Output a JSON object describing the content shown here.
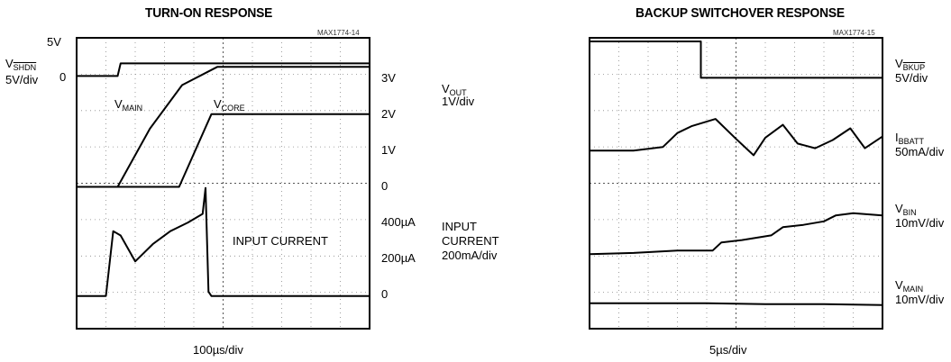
{
  "chart_data": [
    {
      "type": "line",
      "title": "TURN-ON RESPONSE",
      "part_id": "MAX1774-14",
      "xlabel": "100µs/div",
      "left_labels": {
        "top_value": "5V",
        "zero_value": "0",
        "vshdn_main": "V",
        "vshdn_sub": "SHDN",
        "vshdn_scale": "5V/div"
      },
      "right_ticks": [
        "3V",
        "2V",
        "1V",
        "0",
        "400µA",
        "200µA",
        "0"
      ],
      "trace_labels": [
        {
          "main": "V",
          "sub": "MAIN"
        },
        {
          "main": "V",
          "sub": "CORE"
        },
        {
          "main": "INPUT CURRENT",
          "sub": ""
        }
      ],
      "right_channels": {
        "vout_main": "V",
        "vout_sub": "OUT",
        "vout_scale": "1V/div",
        "current_line1": "INPUT",
        "current_line2": "CURRENT",
        "current_scale": "200mA/div"
      },
      "series": [
        {
          "x": [
            0,
            1.4,
            1.5,
            10
          ],
          "y": [
            0,
            0,
            1,
            1
          ]
        },
        {
          "x": [
            0,
            1.4,
            2.5,
            3.6,
            4.8,
            10
          ],
          "y": [
            0,
            0,
            1.6,
            2.8,
            3.3,
            3.3
          ]
        },
        {
          "x": [
            0,
            3.5,
            4.6,
            10
          ],
          "y": [
            0,
            0,
            2.0,
            2.0
          ]
        },
        {
          "x": [
            0,
            1.0,
            1.25,
            1.5,
            2.0,
            2.6,
            3.2,
            3.8,
            4.3,
            4.4,
            4.5,
            4.6,
            10
          ],
          "y": [
            0,
            0,
            0.75,
            0.7,
            0.4,
            0.6,
            0.75,
            0.85,
            0.95,
            1.25,
            0.05,
            0,
            0
          ]
        }
      ]
    },
    {
      "type": "line",
      "title": "BACKUP SWITCHOVER RESPONSE",
      "part_id": "MAX1774-15",
      "xlabel": "5µs/div",
      "right_channels": [
        {
          "main": "V",
          "sub": "BKUP",
          "overline": true,
          "scale": "5V/div"
        },
        {
          "main": "I",
          "sub": "BBATT",
          "overline": false,
          "scale": "50mA/div"
        },
        {
          "main": "V",
          "sub": "BIN",
          "overline": false,
          "scale": "10mV/div"
        },
        {
          "main": "V",
          "sub": "MAIN",
          "overline": false,
          "scale": "10mV/div"
        }
      ],
      "series": [
        {
          "x": [
            0,
            3.8,
            3.8,
            10
          ],
          "y": [
            1,
            1,
            0,
            0
          ]
        },
        {
          "x": [
            0,
            1.5,
            2.5,
            3.0,
            3.5,
            4.3,
            5.0,
            5.6,
            6.0,
            6.6,
            7.1,
            7.7,
            8.3,
            8.9,
            9.4,
            10
          ],
          "y": [
            0,
            0,
            0.3,
            1.5,
            2.1,
            2.7,
            1.0,
            -0.4,
            1.1,
            2.2,
            0.6,
            0.2,
            0.9,
            1.9,
            0.2,
            1.2
          ]
        },
        {
          "x": [
            0,
            1.5,
            3.0,
            4.2,
            4.5,
            5.2,
            6.2,
            6.6,
            7.3,
            8.0,
            8.4,
            9.0,
            10
          ],
          "y": [
            0,
            0.1,
            0.3,
            0.3,
            1.0,
            1.2,
            1.6,
            2.3,
            2.5,
            2.8,
            3.3,
            3.5,
            3.3
          ]
        },
        {
          "x": [
            0,
            2,
            4,
            6,
            8,
            10
          ],
          "y": [
            0,
            0,
            0,
            -0.1,
            -0.1,
            -0.2
          ]
        }
      ]
    }
  ]
}
